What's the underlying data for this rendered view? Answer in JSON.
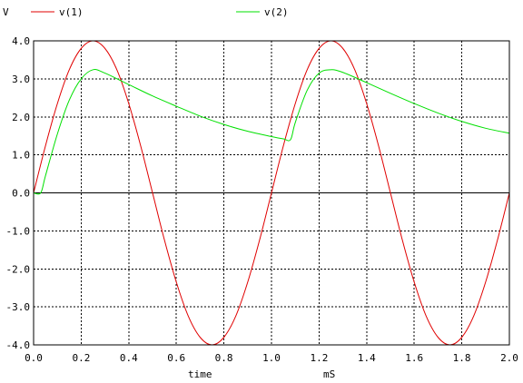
{
  "chart_data": {
    "type": "line",
    "title": "",
    "ylabel": "V",
    "xlabel": "time",
    "xunit": "mS",
    "xlim": [
      0,
      2.0
    ],
    "ylim": [
      -4.0,
      4.0
    ],
    "grid": true,
    "legend_position": "top",
    "x_ticks": [
      "0.0",
      "0.2",
      "0.4",
      "0.6",
      "0.8",
      "1.0",
      "1.2",
      "1.4",
      "1.6",
      "1.8",
      "2.0"
    ],
    "y_ticks": [
      "4.0",
      "3.0",
      "2.0",
      "1.0",
      "0.0",
      "-1.0",
      "-2.0",
      "-3.0",
      "-4.0"
    ],
    "series": [
      {
        "name": "v(1)",
        "color": "#e00000",
        "x": [
          0,
          0.05,
          0.1,
          0.15,
          0.2,
          0.25,
          0.3,
          0.35,
          0.4,
          0.45,
          0.5,
          0.55,
          0.6,
          0.65,
          0.7,
          0.75,
          0.8,
          0.85,
          0.9,
          0.95,
          1.0,
          1.05,
          1.1,
          1.15,
          1.2,
          1.25,
          1.3,
          1.35,
          1.4,
          1.45,
          1.5,
          1.55,
          1.6,
          1.65,
          1.7,
          1.75,
          1.8,
          1.85,
          1.9,
          1.95,
          2.0
        ],
        "y": [
          0,
          1.24,
          2.35,
          3.24,
          3.8,
          4.0,
          3.8,
          3.24,
          2.35,
          1.24,
          0,
          -1.24,
          -2.35,
          -3.24,
          -3.8,
          -4.0,
          -3.8,
          -3.24,
          -2.35,
          -1.24,
          0,
          1.24,
          2.35,
          3.24,
          3.8,
          4.0,
          3.8,
          3.24,
          2.35,
          1.24,
          0,
          -1.24,
          -2.35,
          -3.24,
          -3.8,
          -4.0,
          -3.8,
          -3.24,
          -2.35,
          -1.24,
          0
        ]
      },
      {
        "name": "v(2)",
        "color": "#00e000",
        "x": [
          0,
          0.03,
          0.05,
          0.1,
          0.15,
          0.2,
          0.25,
          0.3,
          0.4,
          0.5,
          0.6,
          0.7,
          0.8,
          0.9,
          1.0,
          1.05,
          1.08,
          1.1,
          1.15,
          1.2,
          1.25,
          1.3,
          1.4,
          1.5,
          1.6,
          1.7,
          1.8,
          1.9,
          2.0
        ],
        "y": [
          0,
          0,
          0.45,
          1.55,
          2.44,
          3.0,
          3.24,
          3.15,
          2.85,
          2.55,
          2.28,
          2.02,
          1.8,
          1.62,
          1.48,
          1.42,
          1.4,
          1.85,
          2.7,
          3.15,
          3.24,
          3.17,
          2.9,
          2.62,
          2.35,
          2.1,
          1.88,
          1.7,
          1.57
        ]
      }
    ]
  }
}
